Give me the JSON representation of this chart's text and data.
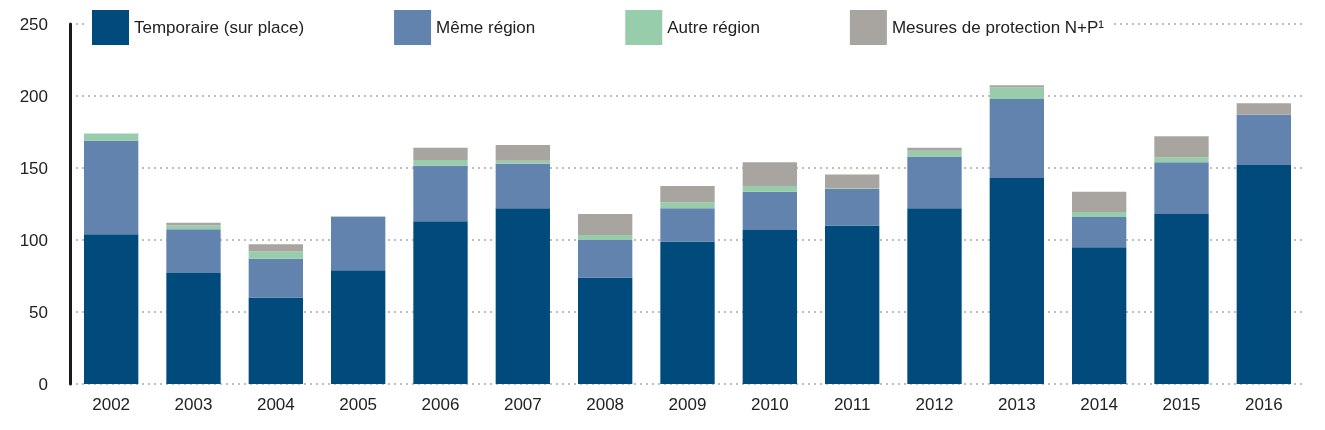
{
  "chart_data": {
    "type": "bar",
    "stacked": true,
    "categories": [
      "2002",
      "2003",
      "2004",
      "2005",
      "2006",
      "2007",
      "2008",
      "2009",
      "2010",
      "2011",
      "2012",
      "2013",
      "2014",
      "2015",
      "2016"
    ],
    "series": [
      {
        "name": "Temporaire (sur place)",
        "color": "#004b7c",
        "values": [
          104,
          77,
          60,
          79,
          113,
          122,
          74,
          99,
          107,
          110,
          122,
          143,
          95,
          118,
          152
        ]
      },
      {
        "name": "Même région",
        "color": "#6283ad",
        "values": [
          65,
          30.5,
          27,
          37,
          38.5,
          31,
          26,
          23,
          26.5,
          25.5,
          36,
          55,
          21,
          36,
          35
        ]
      },
      {
        "name": "Autre région",
        "color": "#97cdaa",
        "values": [
          5,
          2.5,
          5,
          0.5,
          4,
          2,
          3.5,
          4,
          4,
          0.5,
          4,
          8,
          3.5,
          3.5,
          0
        ]
      },
      {
        "name": "Mesures de protection N+P¹",
        "color": "#a8a5a0",
        "values": [
          0,
          2,
          5,
          0,
          8.5,
          11,
          14.5,
          11.5,
          16.5,
          9.5,
          2,
          1.5,
          14,
          14.5,
          8
        ]
      }
    ],
    "ylim": [
      0,
      250
    ],
    "yticks": [
      0,
      50,
      100,
      150,
      200,
      250
    ],
    "grid": "y",
    "legend": "top"
  }
}
